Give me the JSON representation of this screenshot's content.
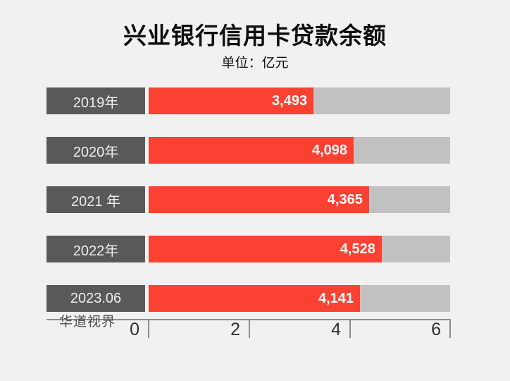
{
  "title": "兴业银行信用卡贷款余额",
  "subtitle": "单位：亿元",
  "watermark": "华道视界",
  "colors": {
    "fill": "#FA4132",
    "track": "#C1C1C1",
    "box": "#595959",
    "bg": "#F1F1F2",
    "axis": "#8C8C8C"
  },
  "chart_data": {
    "type": "bar",
    "orientation": "horizontal",
    "title": "兴业银行信用卡贷款余额",
    "unit": "亿元",
    "categories": [
      "2019年",
      "2020年",
      "2021 年",
      "2022年",
      "2023.06"
    ],
    "values": [
      3493,
      4098,
      4365,
      4528,
      4141
    ],
    "value_labels": [
      "3,493",
      "4,098",
      "4,365",
      "4,528",
      "4,141"
    ],
    "bar_percent": [
      54.7,
      68.0,
      73.1,
      77.3,
      70.1
    ],
    "xlabel": "",
    "ylabel": "",
    "axis_ticks": [
      "0",
      "2",
      "4",
      "6"
    ],
    "axis_range": [
      0,
      6000
    ],
    "grid": false,
    "legend": "none"
  }
}
